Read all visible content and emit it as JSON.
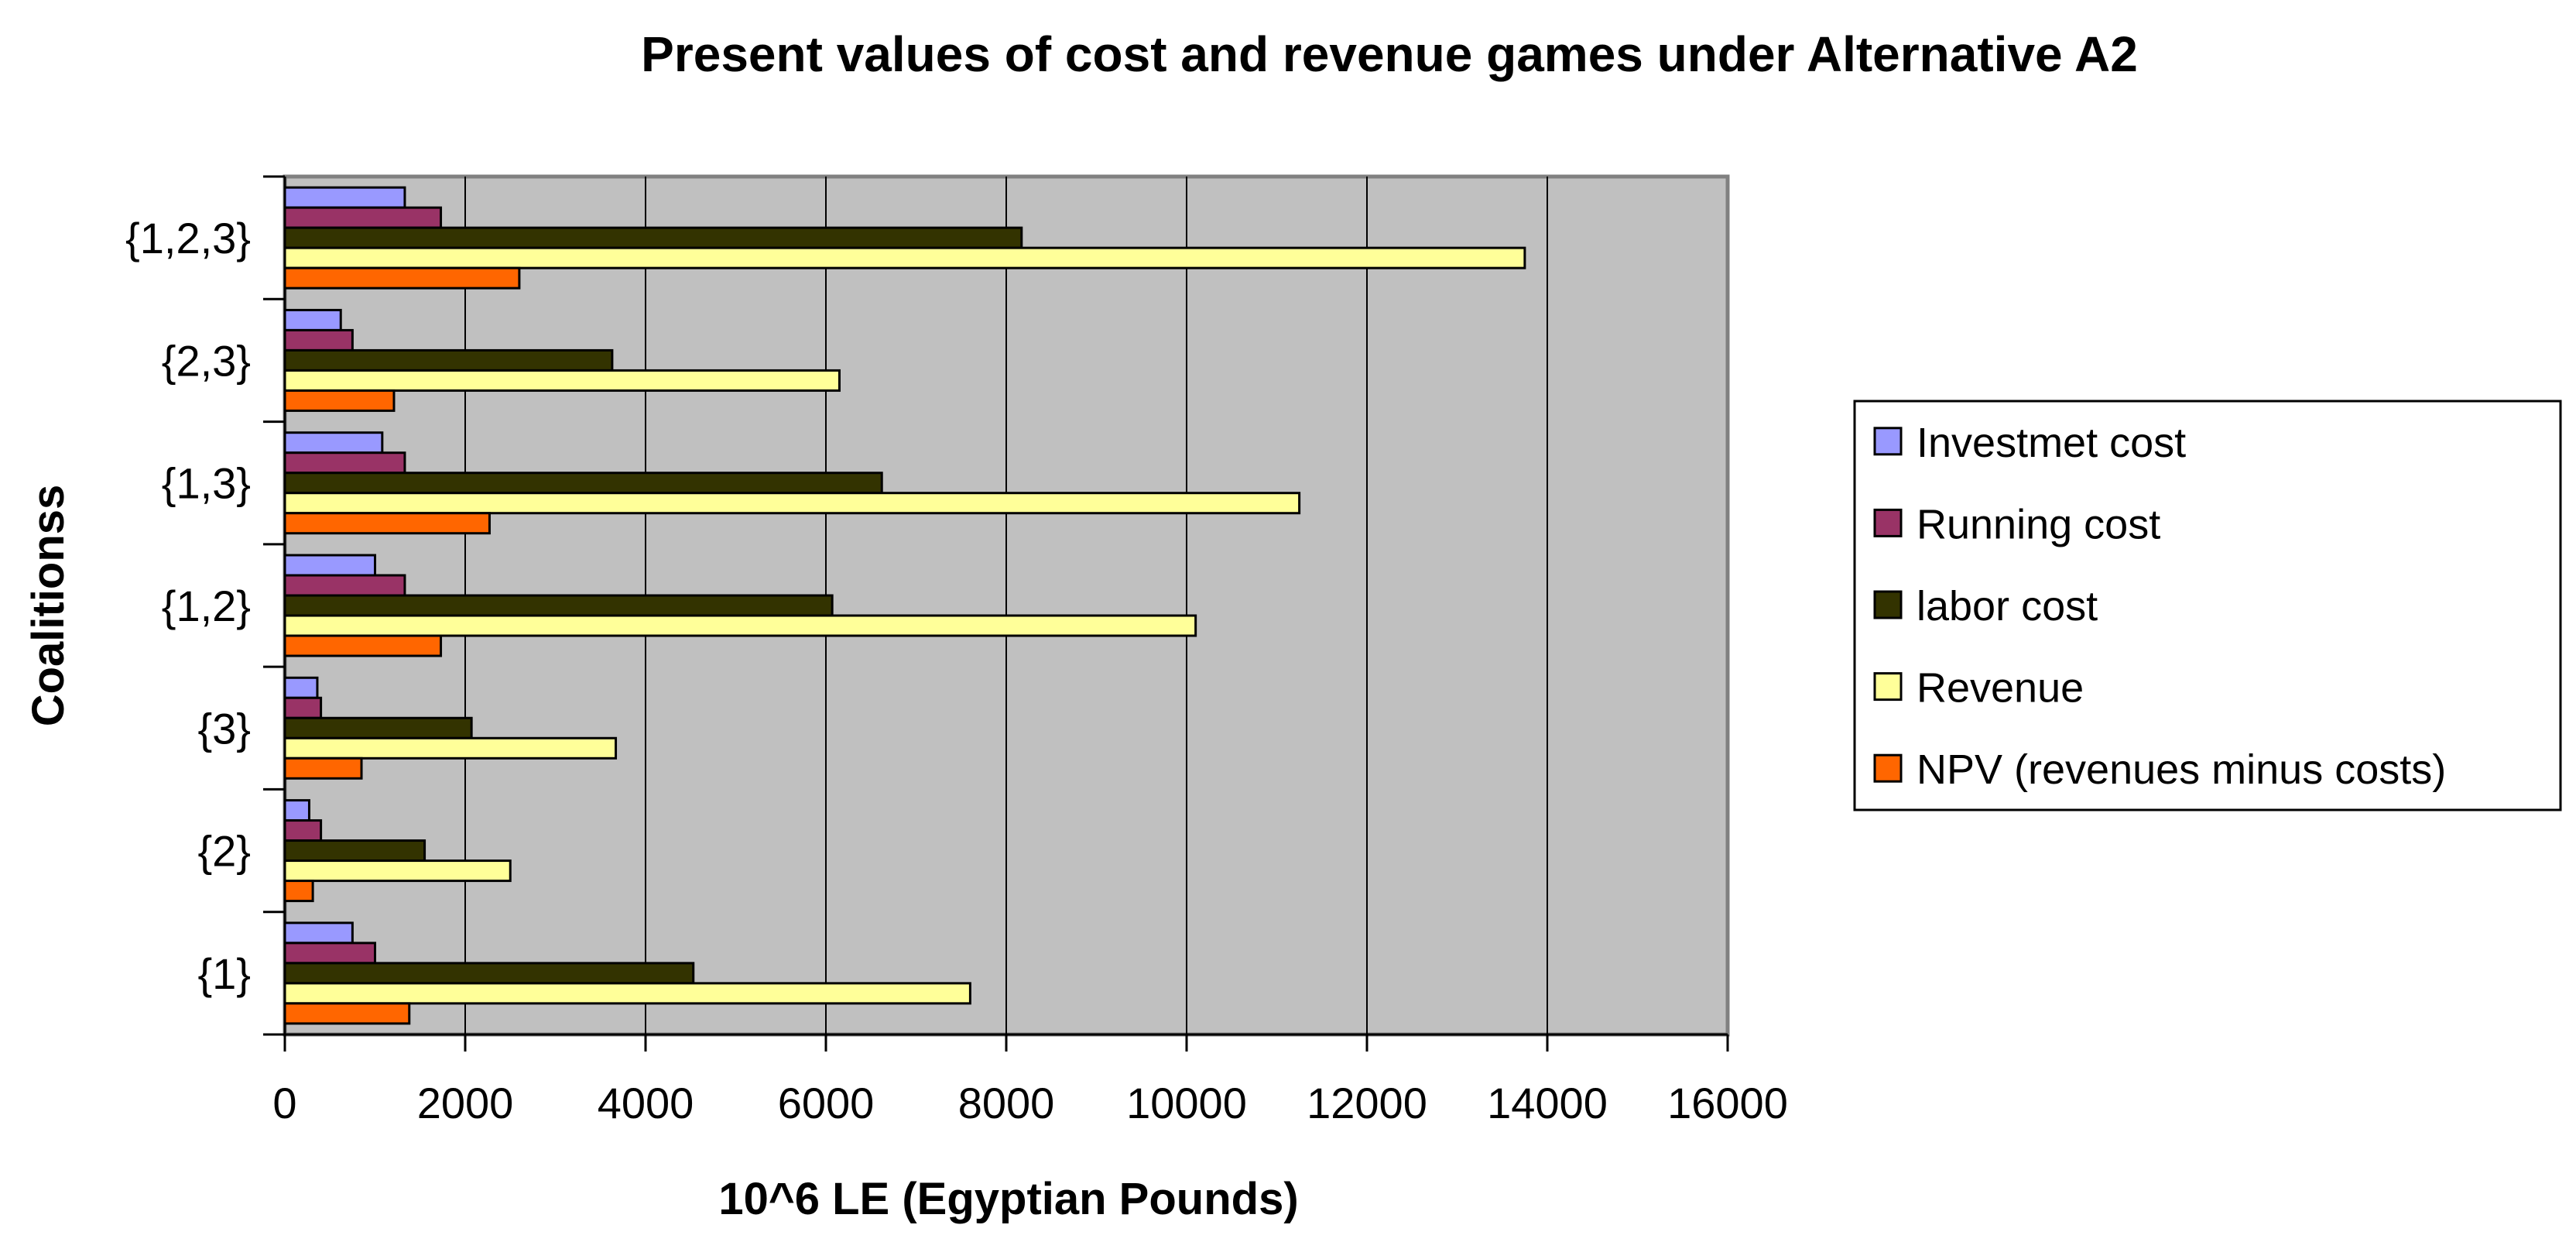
{
  "chart_data": {
    "type": "bar",
    "orientation": "horizontal",
    "title": "Present values of cost and revenue games under Alternative A2",
    "xlabel": "10^6 LE (Egyptian Pounds)",
    "ylabel": "Coalitionss",
    "xlim": [
      0,
      16000
    ],
    "xticks": [
      0,
      2000,
      4000,
      6000,
      8000,
      10000,
      12000,
      14000,
      16000
    ],
    "grid": true,
    "legend_position": "right",
    "categories": [
      "{1}",
      "{2}",
      "{3}",
      "{1,2}",
      "{1,3}",
      "{2,3}",
      "{1,2,3}"
    ],
    "series": [
      {
        "name": "Investmet cost",
        "color": "#9999ff",
        "values": [
          750,
          270,
          360,
          1000,
          1080,
          620,
          1330
        ]
      },
      {
        "name": "Running cost",
        "color": "#993366",
        "values": [
          1000,
          400,
          400,
          1330,
          1330,
          750,
          1730
        ]
      },
      {
        "name": "labor cost",
        "color": "#333300",
        "values": [
          4530,
          1550,
          2070,
          6070,
          6620,
          3630,
          8170
        ]
      },
      {
        "name": "Revenue",
        "color": "#ffff99",
        "values": [
          7600,
          2500,
          3670,
          10100,
          11250,
          6150,
          13750
        ]
      },
      {
        "name": "NPV (revenues minus costs)",
        "color": "#ff6600",
        "values": [
          1380,
          310,
          850,
          1730,
          2270,
          1210,
          2600
        ]
      }
    ]
  }
}
